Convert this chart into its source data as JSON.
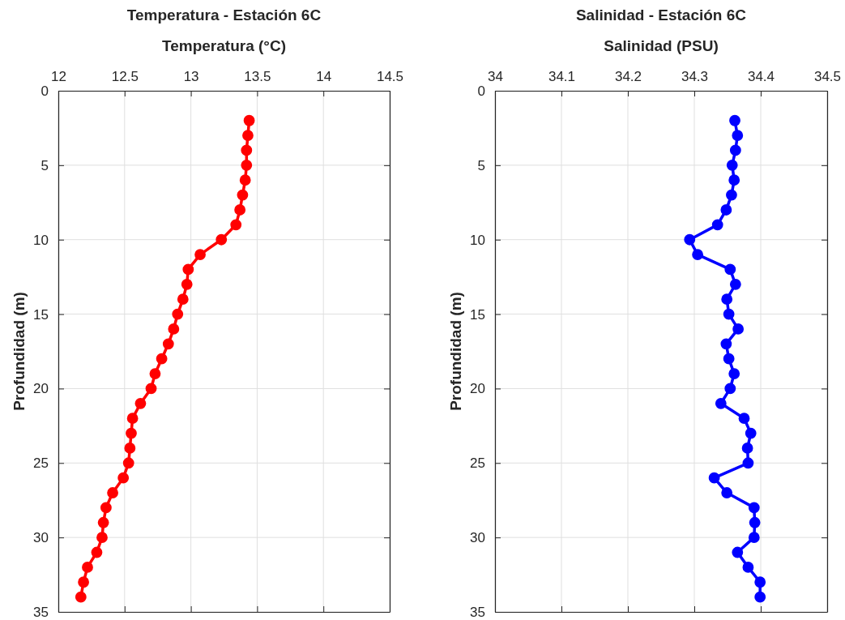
{
  "chart_data": [
    {
      "type": "line",
      "title": "Temperatura - Estación 6C",
      "xlabel": "Temperatura (°C)",
      "ylabel": "Profundidad (m)",
      "xlim": [
        12,
        14.5
      ],
      "xticks": [
        12,
        12.5,
        13,
        13.5,
        14,
        14.5
      ],
      "ylim": [
        35,
        0
      ],
      "yticks": [
        0,
        5,
        10,
        15,
        20,
        25,
        30,
        35
      ],
      "grid": true,
      "marker": "circle",
      "line_style": "solid",
      "series": [
        {
          "color": "#ff0000",
          "x": [
            13.44,
            13.43,
            13.42,
            13.42,
            13.41,
            13.39,
            13.37,
            13.34,
            13.23,
            13.07,
            12.98,
            12.97,
            12.94,
            12.9,
            12.87,
            12.83,
            12.78,
            12.73,
            12.7,
            12.62,
            12.56,
            12.55,
            12.54,
            12.53,
            12.49,
            12.41,
            12.36,
            12.34,
            12.33,
            12.29,
            12.22,
            12.19,
            12.17
          ],
          "values": [
            2,
            3,
            4,
            5,
            6,
            7,
            8,
            9,
            10,
            11,
            12,
            13,
            14,
            15,
            16,
            17,
            18,
            19,
            20,
            21,
            22,
            23,
            24,
            25,
            26,
            27,
            28,
            29,
            30,
            31,
            32,
            33,
            34
          ]
        }
      ]
    },
    {
      "type": "line",
      "title": "Salinidad - Estación 6C",
      "xlabel": "Salinidad (PSU)",
      "ylabel": "Profundidad (m)",
      "xlim": [
        34,
        34.5
      ],
      "xticks": [
        34,
        34.1,
        34.2,
        34.3,
        34.4,
        34.5
      ],
      "ylim": [
        35,
        0
      ],
      "yticks": [
        0,
        5,
        10,
        15,
        20,
        25,
        30,
        35
      ],
      "grid": true,
      "marker": "circle",
      "line_style": "solid",
      "series": [
        {
          "color": "#0000ff",
          "x": [
            34.361,
            34.365,
            34.362,
            34.357,
            34.36,
            34.356,
            34.348,
            34.335,
            34.293,
            34.305,
            34.354,
            34.362,
            34.349,
            34.352,
            34.366,
            34.348,
            34.352,
            34.36,
            34.354,
            34.34,
            34.375,
            34.385,
            34.38,
            34.381,
            34.33,
            34.349,
            34.39,
            34.391,
            34.39,
            34.365,
            34.381,
            34.399,
            34.399
          ],
          "values": [
            2,
            3,
            4,
            5,
            6,
            7,
            8,
            9,
            10,
            11,
            12,
            13,
            14,
            15,
            16,
            17,
            18,
            19,
            20,
            21,
            22,
            23,
            24,
            25,
            26,
            27,
            28,
            29,
            30,
            31,
            32,
            33,
            34
          ]
        }
      ]
    }
  ]
}
